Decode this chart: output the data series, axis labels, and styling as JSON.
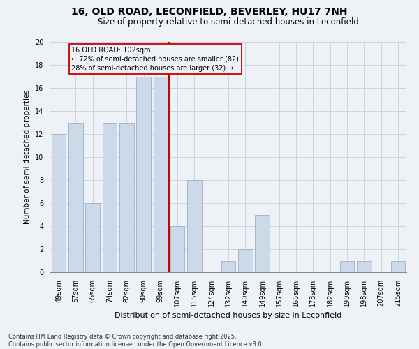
{
  "title": "16, OLD ROAD, LECONFIELD, BEVERLEY, HU17 7NH",
  "subtitle": "Size of property relative to semi-detached houses in Leconfield",
  "xlabel": "Distribution of semi-detached houses by size in Leconfield",
  "ylabel": "Number of semi-detached properties",
  "categories": [
    "49sqm",
    "57sqm",
    "65sqm",
    "74sqm",
    "82sqm",
    "90sqm",
    "99sqm",
    "107sqm",
    "115sqm",
    "124sqm",
    "132sqm",
    "140sqm",
    "149sqm",
    "157sqm",
    "165sqm",
    "173sqm",
    "182sqm",
    "190sqm",
    "198sqm",
    "207sqm",
    "215sqm"
  ],
  "values": [
    12,
    13,
    6,
    13,
    13,
    17,
    17,
    4,
    8,
    0,
    1,
    2,
    5,
    0,
    0,
    0,
    0,
    1,
    1,
    0,
    1
  ],
  "bar_color": "#ccd9e8",
  "bar_edge_color": "#9ab0c8",
  "red_line_x": 6.5,
  "property_label": "16 OLD ROAD: 102sqm",
  "annotation_line1": "← 72% of semi-detached houses are smaller (82)",
  "annotation_line2": "28% of semi-detached houses are larger (32) →",
  "vline_color": "#cc0000",
  "box_edge_color": "#cc0000",
  "ylim": [
    0,
    20
  ],
  "yticks": [
    0,
    2,
    4,
    6,
    8,
    10,
    12,
    14,
    16,
    18,
    20
  ],
  "footer_line1": "Contains HM Land Registry data © Crown copyright and database right 2025.",
  "footer_line2": "Contains public sector information licensed under the Open Government Licence v3.0.",
  "background_color": "#eef2f7",
  "grid_color": "#ccd4de",
  "title_fontsize": 10,
  "subtitle_fontsize": 8.5,
  "ylabel_fontsize": 7.5,
  "xlabel_fontsize": 8,
  "tick_fontsize": 7,
  "annotation_fontsize": 7,
  "footer_fontsize": 6
}
